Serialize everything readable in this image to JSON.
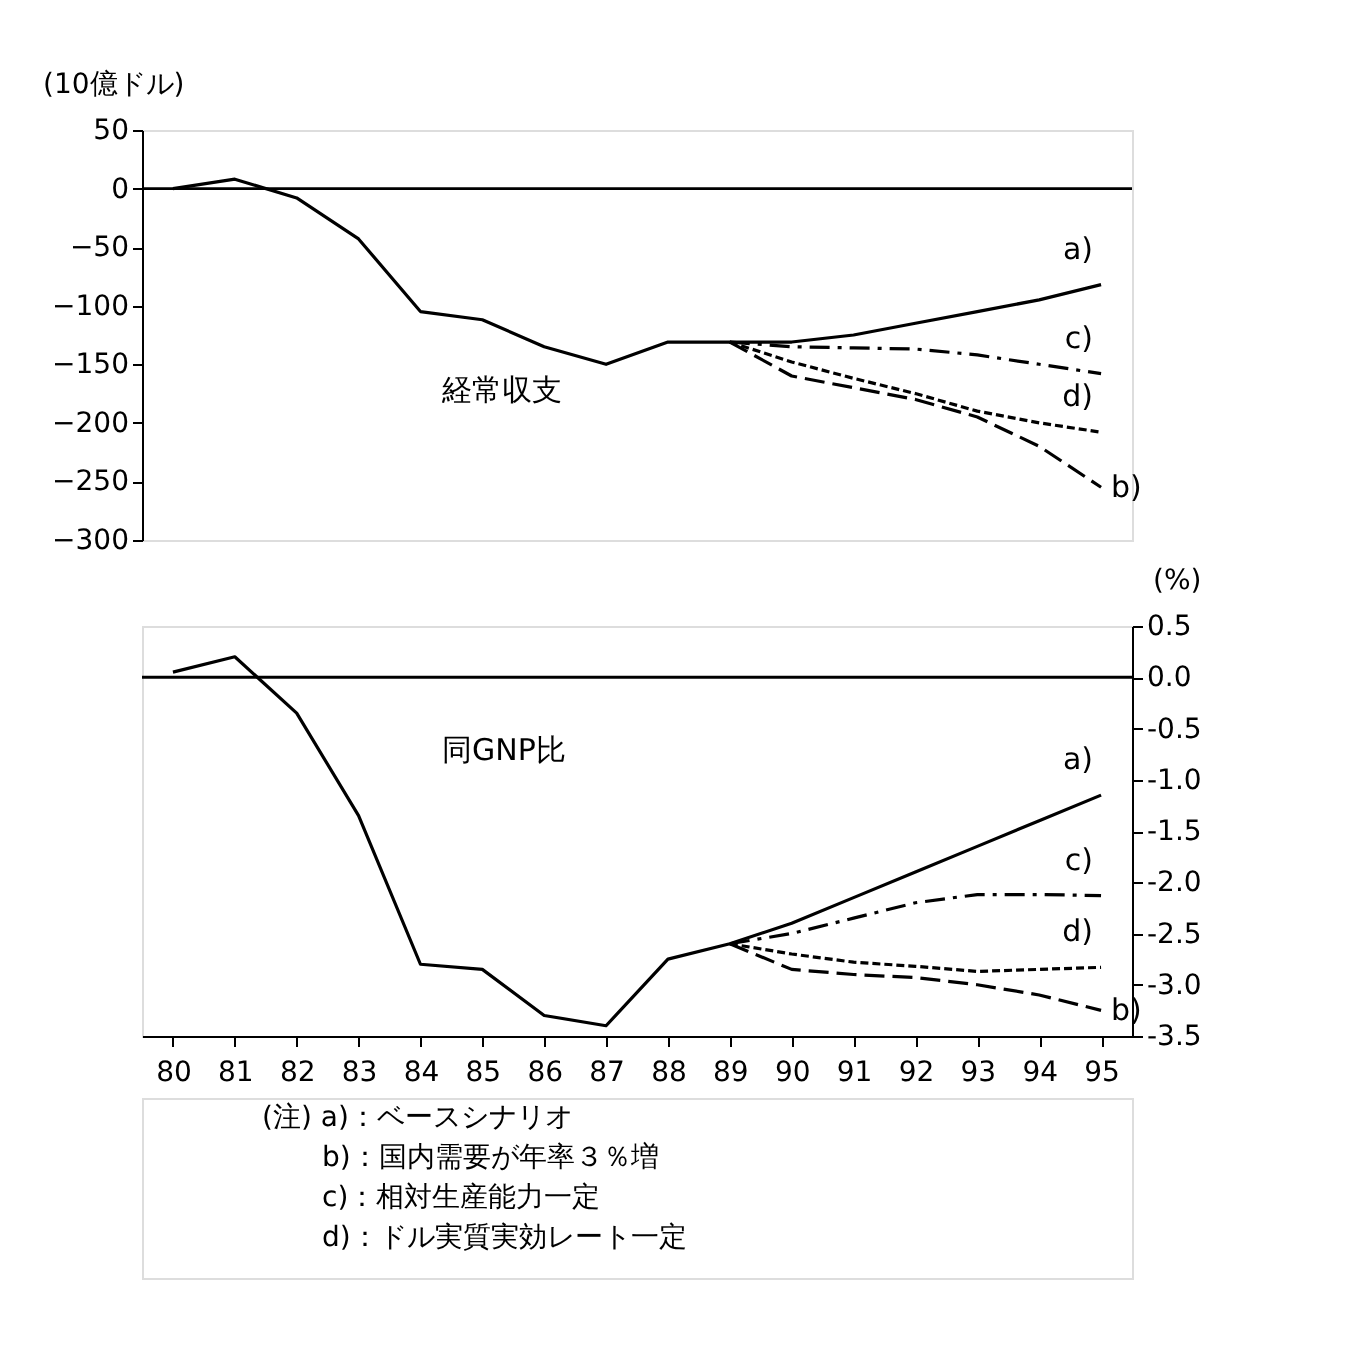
{
  "chart_data": [
    {
      "type": "line",
      "ylabel": "(10億ドル)",
      "x": [
        80,
        81,
        82,
        83,
        84,
        85,
        86,
        87,
        88,
        89,
        90,
        91,
        92,
        93,
        94,
        95
      ],
      "xlim": [
        79.5,
        95.5
      ],
      "ylim": [
        -300,
        50
      ],
      "yticks": [
        -300,
        -250,
        -200,
        -150,
        -100,
        -50,
        0,
        50
      ],
      "tick_labels": "y",
      "ref_lines": [
        {
          "axis": "y",
          "value": 0,
          "color": "#000000"
        }
      ],
      "annotations": [
        "経常収支"
      ],
      "series": [
        {
          "name": "a)",
          "color": "#000000",
          "line_style": "solid",
          "values": [
            0,
            8,
            -8,
            -43,
            -105,
            -112,
            -135,
            -150,
            -131,
            -131,
            -131,
            -125,
            -115,
            -105,
            -95,
            -82
          ]
        },
        {
          "name": "c)",
          "color": "#000000",
          "line_style": "dashdot",
          "values": [
            null,
            null,
            null,
            null,
            null,
            null,
            null,
            null,
            null,
            -131,
            -135,
            -136,
            -137,
            -142,
            -150,
            -158
          ]
        },
        {
          "name": "d)",
          "color": "#000000",
          "line_style": "dotted",
          "values": [
            null,
            null,
            null,
            null,
            null,
            null,
            null,
            null,
            null,
            -131,
            -148,
            -162,
            -175,
            -190,
            -200,
            -208
          ]
        },
        {
          "name": "b)",
          "color": "#000000",
          "line_style": "dashed",
          "values": [
            null,
            null,
            null,
            null,
            null,
            null,
            null,
            null,
            null,
            -131,
            -160,
            -170,
            -180,
            -195,
            -220,
            -255
          ]
        }
      ]
    },
    {
      "type": "line",
      "y2label": "(%)",
      "x": [
        80,
        81,
        82,
        83,
        84,
        85,
        86,
        87,
        88,
        89,
        90,
        91,
        92,
        93,
        94,
        95
      ],
      "xlim": [
        79.5,
        95.5
      ],
      "xticks": [
        80,
        81,
        82,
        83,
        84,
        85,
        86,
        87,
        88,
        89,
        90,
        91,
        92,
        93,
        94,
        95
      ],
      "y2lim": [
        -3.5,
        0.5
      ],
      "y2ticks": [
        {
          "value": -3.5,
          "label": "-3.5"
        },
        {
          "value": -3,
          "label": "-3.0"
        },
        {
          "value": -2.5,
          "label": "-2.5"
        },
        {
          "value": -2,
          "label": "-2.0"
        },
        {
          "value": -1.5,
          "label": "-1.5"
        },
        {
          "value": -1,
          "label": "-1.0"
        },
        {
          "value": -0.5,
          "label": "-0.5"
        },
        {
          "value": 0,
          "label": "0.0"
        },
        {
          "value": 0.5,
          "label": "0.5"
        }
      ],
      "ref_lines": [
        {
          "axis": "y2",
          "value": 0,
          "color": "#000000"
        }
      ],
      "annotations": [
        "同GNP比",
        "(注) a)：ベースシナリオ",
        "b)：国内需要が年率３％増",
        "c)：相対生産能力一定",
        "d)：ドル実質実効レート一定"
      ],
      "series": [
        {
          "axis": "y2",
          "name": "a)",
          "color": "#000000",
          "line_style": "solid",
          "values": [
            0.05,
            0.2,
            -0.35,
            -1.35,
            -2.8,
            -2.85,
            -3.3,
            -3.4,
            -2.75,
            -2.6,
            -2.4,
            -2.15,
            -1.9,
            -1.65,
            -1.4,
            -1.15
          ]
        },
        {
          "axis": "y2",
          "name": "c)",
          "color": "#000000",
          "line_style": "dashdot",
          "values": [
            null,
            null,
            null,
            null,
            null,
            null,
            null,
            null,
            null,
            -2.6,
            -2.5,
            -2.35,
            -2.2,
            -2.12,
            -2.12,
            -2.13
          ]
        },
        {
          "axis": "y2",
          "name": "d)",
          "color": "#000000",
          "line_style": "dotted",
          "values": [
            null,
            null,
            null,
            null,
            null,
            null,
            null,
            null,
            null,
            -2.6,
            -2.7,
            -2.78,
            -2.82,
            -2.87,
            -2.85,
            -2.83
          ]
        },
        {
          "axis": "y2",
          "name": "b)",
          "color": "#000000",
          "line_style": "dashed",
          "values": [
            null,
            null,
            null,
            null,
            null,
            null,
            null,
            null,
            null,
            -2.6,
            -2.85,
            -2.9,
            -2.93,
            -3.0,
            -3.1,
            -3.25
          ]
        }
      ]
    }
  ]
}
